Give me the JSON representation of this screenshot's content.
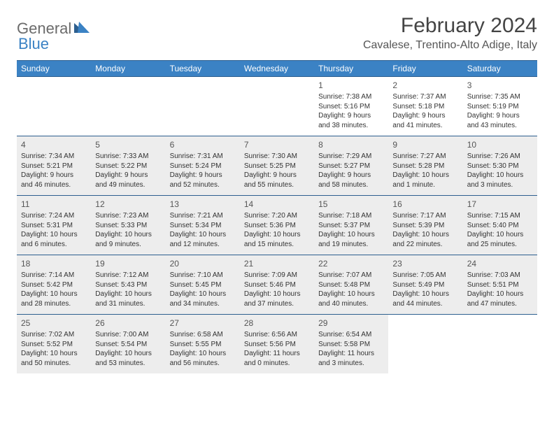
{
  "logo": {
    "text1": "General",
    "text2": "Blue"
  },
  "title": "February 2024",
  "location": "Cavalese, Trentino-Alto Adige, Italy",
  "weekdays": [
    "Sunday",
    "Monday",
    "Tuesday",
    "Wednesday",
    "Thursday",
    "Friday",
    "Saturday"
  ],
  "colors": {
    "header_bg": "#3b82c4",
    "border": "#2d5f8f",
    "shade": "#ededed",
    "text": "#333333"
  },
  "weeks": [
    [
      {
        "empty": true
      },
      {
        "empty": true
      },
      {
        "empty": true
      },
      {
        "empty": true
      },
      {
        "num": "1",
        "sunrise": "Sunrise: 7:38 AM",
        "sunset": "Sunset: 5:16 PM",
        "daylight1": "Daylight: 9 hours",
        "daylight2": "and 38 minutes."
      },
      {
        "num": "2",
        "sunrise": "Sunrise: 7:37 AM",
        "sunset": "Sunset: 5:18 PM",
        "daylight1": "Daylight: 9 hours",
        "daylight2": "and 41 minutes."
      },
      {
        "num": "3",
        "sunrise": "Sunrise: 7:35 AM",
        "sunset": "Sunset: 5:19 PM",
        "daylight1": "Daylight: 9 hours",
        "daylight2": "and 43 minutes."
      }
    ],
    [
      {
        "num": "4",
        "shaded": true,
        "sunrise": "Sunrise: 7:34 AM",
        "sunset": "Sunset: 5:21 PM",
        "daylight1": "Daylight: 9 hours",
        "daylight2": "and 46 minutes."
      },
      {
        "num": "5",
        "shaded": true,
        "sunrise": "Sunrise: 7:33 AM",
        "sunset": "Sunset: 5:22 PM",
        "daylight1": "Daylight: 9 hours",
        "daylight2": "and 49 minutes."
      },
      {
        "num": "6",
        "shaded": true,
        "sunrise": "Sunrise: 7:31 AM",
        "sunset": "Sunset: 5:24 PM",
        "daylight1": "Daylight: 9 hours",
        "daylight2": "and 52 minutes."
      },
      {
        "num": "7",
        "shaded": true,
        "sunrise": "Sunrise: 7:30 AM",
        "sunset": "Sunset: 5:25 PM",
        "daylight1": "Daylight: 9 hours",
        "daylight2": "and 55 minutes."
      },
      {
        "num": "8",
        "shaded": true,
        "sunrise": "Sunrise: 7:29 AM",
        "sunset": "Sunset: 5:27 PM",
        "daylight1": "Daylight: 9 hours",
        "daylight2": "and 58 minutes."
      },
      {
        "num": "9",
        "shaded": true,
        "sunrise": "Sunrise: 7:27 AM",
        "sunset": "Sunset: 5:28 PM",
        "daylight1": "Daylight: 10 hours",
        "daylight2": "and 1 minute."
      },
      {
        "num": "10",
        "shaded": true,
        "sunrise": "Sunrise: 7:26 AM",
        "sunset": "Sunset: 5:30 PM",
        "daylight1": "Daylight: 10 hours",
        "daylight2": "and 3 minutes."
      }
    ],
    [
      {
        "num": "11",
        "shaded": true,
        "sunrise": "Sunrise: 7:24 AM",
        "sunset": "Sunset: 5:31 PM",
        "daylight1": "Daylight: 10 hours",
        "daylight2": "and 6 minutes."
      },
      {
        "num": "12",
        "shaded": true,
        "sunrise": "Sunrise: 7:23 AM",
        "sunset": "Sunset: 5:33 PM",
        "daylight1": "Daylight: 10 hours",
        "daylight2": "and 9 minutes."
      },
      {
        "num": "13",
        "shaded": true,
        "sunrise": "Sunrise: 7:21 AM",
        "sunset": "Sunset: 5:34 PM",
        "daylight1": "Daylight: 10 hours",
        "daylight2": "and 12 minutes."
      },
      {
        "num": "14",
        "shaded": true,
        "sunrise": "Sunrise: 7:20 AM",
        "sunset": "Sunset: 5:36 PM",
        "daylight1": "Daylight: 10 hours",
        "daylight2": "and 15 minutes."
      },
      {
        "num": "15",
        "shaded": true,
        "sunrise": "Sunrise: 7:18 AM",
        "sunset": "Sunset: 5:37 PM",
        "daylight1": "Daylight: 10 hours",
        "daylight2": "and 19 minutes."
      },
      {
        "num": "16",
        "shaded": true,
        "sunrise": "Sunrise: 7:17 AM",
        "sunset": "Sunset: 5:39 PM",
        "daylight1": "Daylight: 10 hours",
        "daylight2": "and 22 minutes."
      },
      {
        "num": "17",
        "shaded": true,
        "sunrise": "Sunrise: 7:15 AM",
        "sunset": "Sunset: 5:40 PM",
        "daylight1": "Daylight: 10 hours",
        "daylight2": "and 25 minutes."
      }
    ],
    [
      {
        "num": "18",
        "shaded": true,
        "sunrise": "Sunrise: 7:14 AM",
        "sunset": "Sunset: 5:42 PM",
        "daylight1": "Daylight: 10 hours",
        "daylight2": "and 28 minutes."
      },
      {
        "num": "19",
        "shaded": true,
        "sunrise": "Sunrise: 7:12 AM",
        "sunset": "Sunset: 5:43 PM",
        "daylight1": "Daylight: 10 hours",
        "daylight2": "and 31 minutes."
      },
      {
        "num": "20",
        "shaded": true,
        "sunrise": "Sunrise: 7:10 AM",
        "sunset": "Sunset: 5:45 PM",
        "daylight1": "Daylight: 10 hours",
        "daylight2": "and 34 minutes."
      },
      {
        "num": "21",
        "shaded": true,
        "sunrise": "Sunrise: 7:09 AM",
        "sunset": "Sunset: 5:46 PM",
        "daylight1": "Daylight: 10 hours",
        "daylight2": "and 37 minutes."
      },
      {
        "num": "22",
        "shaded": true,
        "sunrise": "Sunrise: 7:07 AM",
        "sunset": "Sunset: 5:48 PM",
        "daylight1": "Daylight: 10 hours",
        "daylight2": "and 40 minutes."
      },
      {
        "num": "23",
        "shaded": true,
        "sunrise": "Sunrise: 7:05 AM",
        "sunset": "Sunset: 5:49 PM",
        "daylight1": "Daylight: 10 hours",
        "daylight2": "and 44 minutes."
      },
      {
        "num": "24",
        "shaded": true,
        "sunrise": "Sunrise: 7:03 AM",
        "sunset": "Sunset: 5:51 PM",
        "daylight1": "Daylight: 10 hours",
        "daylight2": "and 47 minutes."
      }
    ],
    [
      {
        "num": "25",
        "shaded": true,
        "sunrise": "Sunrise: 7:02 AM",
        "sunset": "Sunset: 5:52 PM",
        "daylight1": "Daylight: 10 hours",
        "daylight2": "and 50 minutes."
      },
      {
        "num": "26",
        "shaded": true,
        "sunrise": "Sunrise: 7:00 AM",
        "sunset": "Sunset: 5:54 PM",
        "daylight1": "Daylight: 10 hours",
        "daylight2": "and 53 minutes."
      },
      {
        "num": "27",
        "shaded": true,
        "sunrise": "Sunrise: 6:58 AM",
        "sunset": "Sunset: 5:55 PM",
        "daylight1": "Daylight: 10 hours",
        "daylight2": "and 56 minutes."
      },
      {
        "num": "28",
        "shaded": true,
        "sunrise": "Sunrise: 6:56 AM",
        "sunset": "Sunset: 5:56 PM",
        "daylight1": "Daylight: 11 hours",
        "daylight2": "and 0 minutes."
      },
      {
        "num": "29",
        "shaded": true,
        "sunrise": "Sunrise: 6:54 AM",
        "sunset": "Sunset: 5:58 PM",
        "daylight1": "Daylight: 11 hours",
        "daylight2": "and 3 minutes."
      },
      {
        "empty": true
      },
      {
        "empty": true
      }
    ]
  ]
}
